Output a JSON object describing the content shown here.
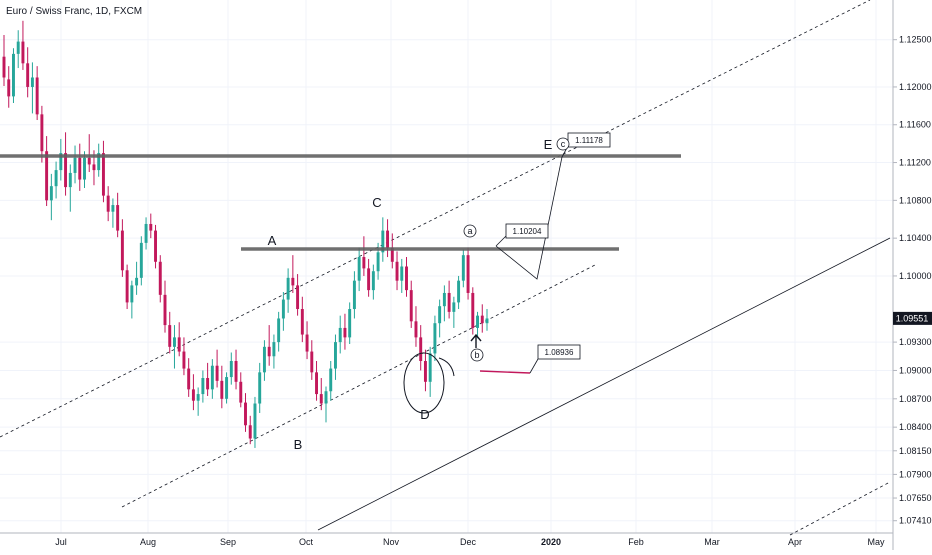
{
  "colors": {
    "up": "#26a69a",
    "down": "#c2185b",
    "grid": "#f0f3fa",
    "axis": "#b2b5be",
    "level": "#616161",
    "last_price_bg": "#131722",
    "last_price_text": "#ffffff",
    "callout_border": "#131722"
  },
  "chart_data": {
    "type": "candlestick",
    "title": "Euro / Swiss Franc, 1D, FXCM",
    "x_axis": {
      "ticks": [
        "Jul",
        "Aug",
        "Sep",
        "Oct",
        "Nov",
        "Dec",
        "2020",
        "Feb",
        "Mar",
        "Apr",
        "May"
      ],
      "bold_ticks": [
        "2020"
      ]
    },
    "y_axis": {
      "range": [
        1.0728,
        1.1292
      ],
      "ticks": [
        "1.12500",
        "1.12000",
        "1.11600",
        "1.11200",
        "1.10800",
        "1.10400",
        "1.10000",
        "1.09551",
        "1.09300",
        "1.09000",
        "1.08700",
        "1.08400",
        "1.08150",
        "1.07900",
        "1.07650",
        "1.07410"
      ],
      "last_price": "1.09551"
    },
    "series": [
      {
        "kind": "ohlc",
        "ohlc": [
          [
            1.1232,
            1.1255,
            1.1201,
            1.121
          ],
          [
            1.1208,
            1.1222,
            1.1178,
            1.119
          ],
          [
            1.119,
            1.1241,
            1.1183,
            1.1235
          ],
          [
            1.1235,
            1.126,
            1.122,
            1.1248
          ],
          [
            1.1248,
            1.127,
            1.1218,
            1.1225
          ],
          [
            1.1225,
            1.1242,
            1.1189,
            1.12
          ],
          [
            1.12,
            1.1226,
            1.1172,
            1.121
          ],
          [
            1.121,
            1.1222,
            1.1165,
            1.1171
          ],
          [
            1.1171,
            1.118,
            1.112,
            1.1132
          ],
          [
            1.1132,
            1.1148,
            1.1074,
            1.108
          ],
          [
            1.108,
            1.1108,
            1.1059,
            1.1095
          ],
          [
            1.1095,
            1.1121,
            1.1082,
            1.1112
          ],
          [
            1.1112,
            1.1145,
            1.1101,
            1.113
          ],
          [
            1.113,
            1.1152,
            1.1085,
            1.1094
          ],
          [
            1.1094,
            1.1118,
            1.1068,
            1.1109
          ],
          [
            1.1109,
            1.1138,
            1.1098,
            1.1125
          ],
          [
            1.1125,
            1.114,
            1.109,
            1.1102
          ],
          [
            1.1102,
            1.1132,
            1.1093,
            1.1125
          ],
          [
            1.1125,
            1.115,
            1.111,
            1.1118
          ],
          [
            1.1118,
            1.1133,
            1.1096,
            1.1112
          ],
          [
            1.1112,
            1.114,
            1.1105,
            1.113
          ],
          [
            1.113,
            1.1143,
            1.1078,
            1.1085
          ],
          [
            1.1085,
            1.1095,
            1.1058,
            1.1068
          ],
          [
            1.1068,
            1.1082,
            1.1051,
            1.1075
          ],
          [
            1.1075,
            1.1088,
            1.1041,
            1.1048
          ],
          [
            1.1048,
            1.106,
            1.0999,
            1.1006
          ],
          [
            1.1006,
            1.1012,
            1.0965,
            1.0972
          ],
          [
            1.0972,
            1.0995,
            1.0955,
            1.099
          ],
          [
            1.099,
            1.1015,
            1.098,
            1.0998
          ],
          [
            1.0998,
            1.1042,
            1.099,
            1.1035
          ],
          [
            1.1035,
            1.1062,
            1.1028,
            1.1055
          ],
          [
            1.1055,
            1.1066,
            1.104,
            1.1048
          ],
          [
            1.1048,
            1.1054,
            1.1008,
            1.1015
          ],
          [
            1.1015,
            1.1022,
            1.0972,
            1.098
          ],
          [
            1.098,
            1.0995,
            1.094,
            1.0948
          ],
          [
            1.0948,
            1.0962,
            1.0918,
            1.0925
          ],
          [
            1.0925,
            1.0948,
            1.0902,
            1.0935
          ],
          [
            1.0935,
            1.0951,
            1.0915,
            1.092
          ],
          [
            1.092,
            1.0935,
            1.0895,
            1.0902
          ],
          [
            1.0902,
            1.0913,
            1.0872,
            1.088
          ],
          [
            1.088,
            1.0896,
            1.0858,
            1.0868
          ],
          [
            1.0868,
            1.0882,
            1.0852,
            1.0875
          ],
          [
            1.0875,
            1.09,
            1.0866,
            1.0892
          ],
          [
            1.0892,
            1.0908,
            1.0873,
            1.088
          ],
          [
            1.088,
            1.0912,
            1.087,
            1.0905
          ],
          [
            1.0905,
            1.0922,
            1.0882,
            1.0889
          ],
          [
            1.0889,
            1.0905,
            1.086,
            1.087
          ],
          [
            1.087,
            1.0898,
            1.0865,
            1.0893
          ],
          [
            1.0893,
            1.0919,
            1.0885,
            1.091
          ],
          [
            1.091,
            1.0922,
            1.088,
            1.0888
          ],
          [
            1.0888,
            1.0898,
            1.0861,
            1.0866
          ],
          [
            1.0866,
            1.0876,
            1.0835,
            1.0842
          ],
          [
            1.0842,
            1.0852,
            1.0822,
            1.0828
          ],
          [
            1.0828,
            1.0872,
            1.0818,
            1.0865
          ],
          [
            1.0865,
            1.0908,
            1.0855,
            1.0898
          ],
          [
            1.0898,
            1.0932,
            1.0889,
            1.0925
          ],
          [
            1.0925,
            1.0948,
            1.0905,
            1.0915
          ],
          [
            1.0915,
            1.0938,
            1.0902,
            1.093
          ],
          [
            1.093,
            1.0962,
            1.092,
            1.0955
          ],
          [
            1.0955,
            1.0983,
            1.0942,
            1.0975
          ],
          [
            1.0975,
            1.1008,
            1.0961,
            1.0998
          ],
          [
            1.0998,
            1.1022,
            1.0982,
            1.099
          ],
          [
            1.099,
            1.1002,
            1.0958,
            1.0965
          ],
          [
            1.0965,
            1.0978,
            1.093,
            1.0938
          ],
          [
            1.0938,
            1.0952,
            1.0912,
            1.092
          ],
          [
            1.092,
            1.0932,
            1.089,
            1.0898
          ],
          [
            1.0898,
            1.091,
            1.0868,
            1.0875
          ],
          [
            1.0875,
            1.0892,
            1.0858,
            1.0865
          ],
          [
            1.0865,
            1.0883,
            1.0845,
            1.0878
          ],
          [
            1.0878,
            1.091,
            1.0868,
            1.0902
          ],
          [
            1.0902,
            1.0938,
            1.089,
            1.093
          ],
          [
            1.093,
            1.0958,
            1.0918,
            1.0945
          ],
          [
            1.0945,
            1.096,
            1.0922,
            1.0935
          ],
          [
            1.0935,
            1.0972,
            1.0928,
            1.0965
          ],
          [
            1.0965,
            1.1005,
            1.0955,
            1.0995
          ],
          [
            1.0995,
            1.103,
            1.0984,
            1.102
          ],
          [
            1.102,
            1.1042,
            1.1,
            1.1008
          ],
          [
            1.1008,
            1.1018,
            1.0978,
            1.0985
          ],
          [
            1.0985,
            1.1012,
            1.0975,
            1.1005
          ],
          [
            1.1005,
            1.1035,
            1.0996,
            1.1025
          ],
          [
            1.1025,
            1.1062,
            1.1015,
            1.1048
          ],
          [
            1.1048,
            1.106,
            1.102,
            1.103
          ],
          [
            1.103,
            1.1045,
            1.1008,
            1.1015
          ],
          [
            1.1015,
            1.1026,
            1.0985,
            1.0995
          ],
          [
            1.0995,
            1.1018,
            1.0982,
            1.101
          ],
          [
            1.101,
            1.102,
            1.0978,
            1.0985
          ],
          [
            1.0985,
            1.0995,
            1.0945,
            1.0952
          ],
          [
            1.0952,
            1.0968,
            1.0925,
            1.0935
          ],
          [
            1.0935,
            1.0948,
            1.09,
            1.091
          ],
          [
            1.091,
            1.0922,
            1.0878,
            1.0888
          ],
          [
            1.0888,
            1.0925,
            1.0872,
            1.0918
          ],
          [
            1.0918,
            1.0958,
            1.091,
            1.095
          ],
          [
            1.095,
            1.0975,
            1.0935,
            1.0968
          ],
          [
            1.0968,
            1.099,
            1.0952,
            1.0982
          ],
          [
            1.0982,
            1.0995,
            1.0955,
            1.0962
          ],
          [
            1.0962,
            1.0978,
            1.0945,
            1.0972
          ],
          [
            1.0972,
            1.1,
            1.0965,
            1.0995
          ],
          [
            1.0995,
            1.1028,
            1.0988,
            1.1022
          ],
          [
            1.1022,
            1.103,
            1.0975,
            1.0982
          ],
          [
            1.0982,
            1.0988,
            1.0938,
            1.0945
          ],
          [
            1.0945,
            1.0962,
            1.0934,
            1.0958
          ],
          [
            1.0958,
            1.097,
            1.094,
            1.095
          ],
          [
            1.095,
            1.0965,
            1.0942,
            1.0955
          ]
        ]
      }
    ],
    "annotations": {
      "resistance_levels": [
        "1.11200",
        "1.10204"
      ],
      "wave_labels": [
        "A",
        "B",
        "C",
        "D",
        "E"
      ],
      "sub_wave_labels": [
        "a",
        "b",
        "c"
      ],
      "targets": [
        "1.11178",
        "1.10204",
        "1.08936"
      ]
    },
    "grid": true,
    "legend": "none"
  }
}
